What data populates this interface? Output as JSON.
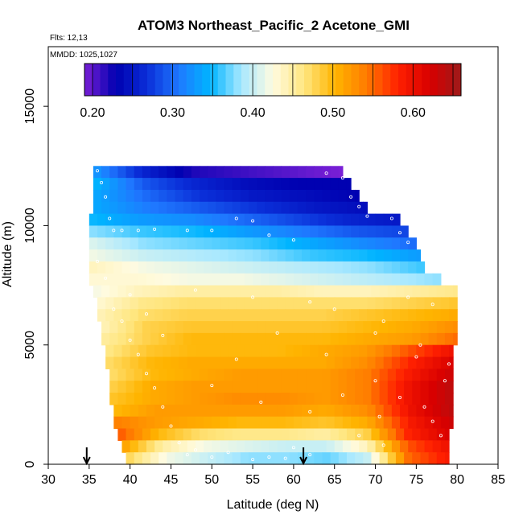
{
  "chart_data": {
    "type": "heatmap",
    "title": "ATOM3 Northeast_Pacific_2 Acetone_GMI",
    "flights_label": "Flts: 12,13",
    "dates_label": "MMDD: 1025,1027",
    "xlabel": "Latitude (deg N)",
    "ylabel": "Altitude (m)",
    "xlim": [
      30,
      85
    ],
    "ylim": [
      0,
      17500
    ],
    "x_ticks": [
      "30",
      "35",
      "40",
      "45",
      "50",
      "55",
      "60",
      "65",
      "70",
      "75",
      "80",
      "85"
    ],
    "y_ticks": [
      "0",
      "5000",
      "10000",
      "15000"
    ],
    "colorbar": {
      "range": [
        0.19,
        0.66
      ],
      "tick_labels": [
        "0.20",
        "0.30",
        "0.40",
        "0.50",
        "0.60"
      ],
      "tick_values": [
        0.2,
        0.3,
        0.4,
        0.5,
        0.6
      ],
      "colors": [
        "#7a1fd6",
        "#0000b0",
        "#0a2ed8",
        "#1f78ff",
        "#00b4ff",
        "#a8e8ff",
        "#fffbe0",
        "#ffe680",
        "#ffb400",
        "#ff7a00",
        "#ff2000",
        "#d80000",
        "#9e1a1a"
      ]
    },
    "arrows_latitude": [
      34.7,
      61.2
    ],
    "rows": [
      {
        "alt_bottom": 12000,
        "alt_top": 12500,
        "lat_start": 35.5,
        "lat_end": 66,
        "values": [
          0.33,
          0.26,
          0.22,
          0.21,
          0.2,
          0.19
        ]
      },
      {
        "alt_bottom": 11500,
        "alt_top": 12000,
        "lat_start": 35.5,
        "lat_end": 67,
        "values": [
          0.35,
          0.29,
          0.26,
          0.24,
          0.23,
          0.23
        ]
      },
      {
        "alt_bottom": 11000,
        "alt_top": 11500,
        "lat_start": 35.5,
        "lat_end": 68,
        "values": [
          0.34,
          0.3,
          0.27,
          0.25,
          0.24,
          0.23
        ]
      },
      {
        "alt_bottom": 10500,
        "alt_top": 11000,
        "lat_start": 35.5,
        "lat_end": 69,
        "values": [
          0.34,
          0.31,
          0.29,
          0.27,
          0.25,
          0.24
        ]
      },
      {
        "alt_bottom": 10000,
        "alt_top": 10500,
        "lat_start": 35,
        "lat_end": 73,
        "values": [
          0.35,
          0.33,
          0.32,
          0.3,
          0.28,
          0.26,
          0.25
        ]
      },
      {
        "alt_bottom": 9500,
        "alt_top": 10000,
        "lat_start": 35,
        "lat_end": 74,
        "values": [
          0.38,
          0.36,
          0.35,
          0.33,
          0.31,
          0.29,
          0.28
        ]
      },
      {
        "alt_bottom": 9000,
        "alt_top": 9500,
        "lat_start": 35,
        "lat_end": 75,
        "values": [
          0.41,
          0.38,
          0.37,
          0.36,
          0.34,
          0.32,
          0.3
        ]
      },
      {
        "alt_bottom": 8500,
        "alt_top": 9000,
        "lat_start": 35,
        "lat_end": 75.5,
        "values": [
          0.42,
          0.4,
          0.39,
          0.38,
          0.36,
          0.35,
          0.33
        ]
      },
      {
        "alt_bottom": 8000,
        "alt_top": 8500,
        "lat_start": 35,
        "lat_end": 76,
        "values": [
          0.44,
          0.42,
          0.41,
          0.4,
          0.39,
          0.38,
          0.36
        ]
      },
      {
        "alt_bottom": 7500,
        "alt_top": 8000,
        "lat_start": 35,
        "lat_end": 78,
        "values": [
          0.43,
          0.43,
          0.42,
          0.42,
          0.41,
          0.4,
          0.39,
          0.38
        ]
      },
      {
        "alt_bottom": 7000,
        "alt_top": 7500,
        "lat_start": 35.5,
        "lat_end": 80,
        "values": [
          0.42,
          0.44,
          0.45,
          0.45,
          0.45,
          0.44,
          0.44,
          0.45,
          0.46
        ]
      },
      {
        "alt_bottom": 6500,
        "alt_top": 7000,
        "lat_start": 36,
        "lat_end": 80,
        "values": [
          0.43,
          0.46,
          0.47,
          0.47,
          0.47,
          0.47,
          0.47,
          0.48,
          0.49
        ]
      },
      {
        "alt_bottom": 6000,
        "alt_top": 6500,
        "lat_start": 36,
        "lat_end": 80,
        "values": [
          0.44,
          0.47,
          0.48,
          0.48,
          0.48,
          0.48,
          0.49,
          0.5,
          0.51
        ]
      },
      {
        "alt_bottom": 5500,
        "alt_top": 6000,
        "lat_start": 36.5,
        "lat_end": 80,
        "values": [
          0.44,
          0.48,
          0.49,
          0.49,
          0.49,
          0.49,
          0.5,
          0.51,
          0.53
        ]
      },
      {
        "alt_bottom": 5000,
        "alt_top": 5500,
        "lat_start": 36.5,
        "lat_end": 80,
        "values": [
          0.45,
          0.48,
          0.5,
          0.5,
          0.5,
          0.5,
          0.51,
          0.52,
          0.55
        ]
      },
      {
        "alt_bottom": 4500,
        "alt_top": 5000,
        "lat_start": 37,
        "lat_end": 79.5,
        "values": [
          0.46,
          0.49,
          0.5,
          0.5,
          0.5,
          0.51,
          0.52,
          0.56,
          0.6
        ]
      },
      {
        "alt_bottom": 4000,
        "alt_top": 4500,
        "lat_start": 37,
        "lat_end": 79.5,
        "values": [
          0.47,
          0.5,
          0.51,
          0.51,
          0.51,
          0.51,
          0.53,
          0.58,
          0.62
        ]
      },
      {
        "alt_bottom": 3500,
        "alt_top": 4000,
        "lat_start": 37.5,
        "lat_end": 79.5,
        "values": [
          0.47,
          0.5,
          0.51,
          0.52,
          0.52,
          0.52,
          0.54,
          0.59,
          0.63
        ]
      },
      {
        "alt_bottom": 3000,
        "alt_top": 3500,
        "lat_start": 37.5,
        "lat_end": 79.5,
        "values": [
          0.48,
          0.51,
          0.52,
          0.52,
          0.52,
          0.52,
          0.54,
          0.6,
          0.64
        ]
      },
      {
        "alt_bottom": 2500,
        "alt_top": 3000,
        "lat_start": 37.5,
        "lat_end": 79.5,
        "values": [
          0.49,
          0.51,
          0.52,
          0.53,
          0.53,
          0.52,
          0.54,
          0.6,
          0.64
        ]
      },
      {
        "alt_bottom": 2000,
        "alt_top": 2500,
        "lat_start": 38,
        "lat_end": 79.5,
        "values": [
          0.5,
          0.52,
          0.52,
          0.52,
          0.52,
          0.51,
          0.53,
          0.6,
          0.64
        ]
      },
      {
        "alt_bottom": 1500,
        "alt_top": 2000,
        "lat_start": 38,
        "lat_end": 79.5,
        "values": [
          0.54,
          0.52,
          0.51,
          0.5,
          0.5,
          0.49,
          0.51,
          0.59,
          0.63
        ]
      },
      {
        "alt_bottom": 1000,
        "alt_top": 1500,
        "lat_start": 38.5,
        "lat_end": 79,
        "values": [
          0.56,
          0.5,
          0.47,
          0.46,
          0.46,
          0.45,
          0.48,
          0.58,
          0.62
        ]
      },
      {
        "alt_bottom": 500,
        "alt_top": 1000,
        "lat_start": 39,
        "lat_end": 79,
        "values": [
          0.52,
          0.45,
          0.42,
          0.41,
          0.4,
          0.4,
          0.44,
          0.56,
          0.6
        ]
      },
      {
        "alt_bottom": 0,
        "alt_top": 500,
        "lat_start": 39.5,
        "lat_end": 79,
        "values": [
          0.48,
          0.42,
          0.4,
          0.38,
          0.38,
          0.37,
          0.4,
          0.55,
          0.59
        ]
      }
    ],
    "flight_track_points": [
      [
        36,
        12300
      ],
      [
        36.5,
        11800
      ],
      [
        37,
        11200
      ],
      [
        37.5,
        10300
      ],
      [
        38,
        9800
      ],
      [
        39,
        9800
      ],
      [
        41,
        9800
      ],
      [
        43,
        9850
      ],
      [
        47,
        9800
      ],
      [
        50,
        9800
      ],
      [
        53,
        10300
      ],
      [
        55,
        10200
      ],
      [
        57,
        9600
      ],
      [
        60,
        9400
      ],
      [
        64,
        12200
      ],
      [
        66,
        12000
      ],
      [
        67,
        11200
      ],
      [
        68,
        10800
      ],
      [
        69,
        10400
      ],
      [
        72,
        10300
      ],
      [
        73,
        9700
      ],
      [
        74,
        9300
      ],
      [
        36,
        8500
      ],
      [
        37,
        7800
      ],
      [
        38,
        6500
      ],
      [
        39,
        6000
      ],
      [
        40,
        5200
      ],
      [
        41,
        4600
      ],
      [
        42,
        3800
      ],
      [
        43,
        3200
      ],
      [
        44,
        2400
      ],
      [
        45,
        1600
      ],
      [
        46,
        900
      ],
      [
        47,
        400
      ],
      [
        48,
        600
      ],
      [
        50,
        300
      ],
      [
        52,
        500
      ],
      [
        55,
        200
      ],
      [
        57,
        300
      ],
      [
        59,
        250
      ],
      [
        60,
        700
      ],
      [
        62,
        400
      ],
      [
        65,
        6500
      ],
      [
        70,
        5500
      ],
      [
        70,
        3500
      ],
      [
        70.5,
        2000
      ],
      [
        71,
        800
      ],
      [
        74,
        7000
      ],
      [
        75,
        4500
      ],
      [
        76,
        2400
      ],
      [
        77,
        1800
      ],
      [
        78,
        1200
      ],
      [
        78.5,
        3500
      ],
      [
        75.5,
        5000
      ],
      [
        73,
        2800
      ],
      [
        53,
        4400
      ],
      [
        55,
        7000
      ],
      [
        58,
        5500
      ],
      [
        62,
        6800
      ],
      [
        64,
        4600
      ],
      [
        66,
        2900
      ],
      [
        48,
        7300
      ],
      [
        44,
        5400
      ],
      [
        42,
        6300
      ],
      [
        40,
        7100
      ],
      [
        50,
        3300
      ],
      [
        56,
        2600
      ],
      [
        62,
        2200
      ],
      [
        68,
        1200
      ],
      [
        71,
        6000
      ],
      [
        77,
        6700
      ],
      [
        79,
        4200
      ]
    ]
  }
}
